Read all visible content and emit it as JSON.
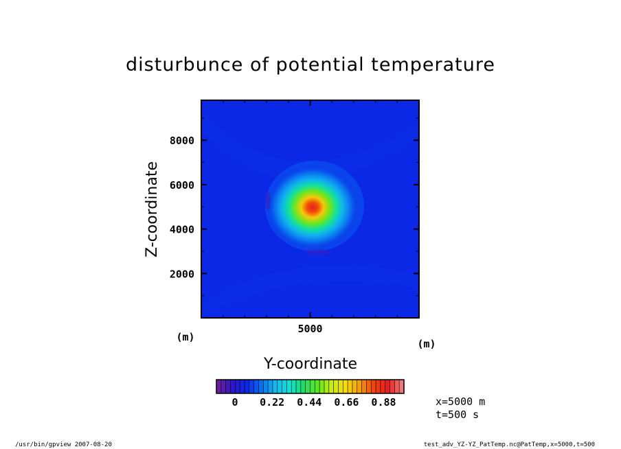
{
  "chart_data": {
    "type": "heatmap",
    "title": "disturbunce of potential temperature",
    "xlabel": "Y-coordinate",
    "ylabel": "Z-coordinate",
    "x_unit": "(m)",
    "y_unit": "(m)",
    "xlim": [
      0,
      10000
    ],
    "ylim": [
      0,
      9800
    ],
    "x_ticks": [
      5000
    ],
    "x_tick_labels": [
      "5000"
    ],
    "y_ticks": [
      2000,
      4000,
      6000,
      8000
    ],
    "y_tick_labels": [
      "2000",
      "4000",
      "6000",
      "8000"
    ],
    "field": {
      "shape": "single warm blob, peak at center",
      "peak_center": [
        5000,
        5000
      ],
      "peak_value": 1.0,
      "background_value": 0.0
    },
    "colorbar": {
      "min": -0.11,
      "max": 1.0,
      "tick_values": [
        0,
        0.22,
        0.44,
        0.66,
        0.88
      ],
      "tick_labels": [
        "0",
        "0.22",
        "0.44",
        "0.66",
        "0.88"
      ],
      "palette": [
        "#6a1f9e",
        "#2d16c8",
        "#0a28e6",
        "#0a6ef0",
        "#10b8f0",
        "#12e0d8",
        "#1edc6e",
        "#5ae61e",
        "#c8ec14",
        "#f5dc0a",
        "#f5a00a",
        "#f0460a",
        "#e81e1e",
        "#f07878"
      ]
    }
  },
  "annotations": {
    "position_label": "x=5000 m",
    "time_label": "t=500 s"
  },
  "footer": {
    "left": "/usr/bin/gpview  2007-08-20",
    "right": "test_adv_YZ-YZ_PatTemp.nc@PatTemp,x=5000,t=500"
  }
}
